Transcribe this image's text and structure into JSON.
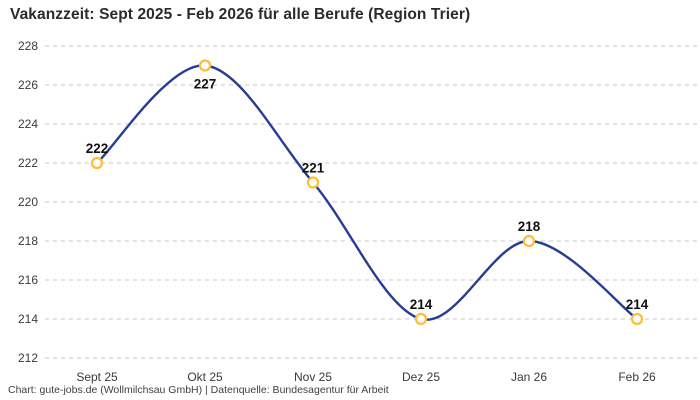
{
  "title": "Vakanzzeit: Sept 2025 - Feb 2026 für alle Berufe (Region Trier)",
  "footer": "Chart: gute-jobs.de (Wollmilchsau GmbH) | Datenquelle: Bundesagentur für Arbeit",
  "chart_data": {
    "type": "line",
    "title": "Vakanzzeit: Sept 2025 - Feb 2026 für alle Berufe (Region Trier)",
    "categories": [
      "Sept 25",
      "Okt 25",
      "Nov 25",
      "Dez 25",
      "Jan 26",
      "Feb 26"
    ],
    "values": [
      222,
      227,
      221,
      214,
      218,
      214
    ],
    "data_labels": [
      "222",
      "227",
      "221",
      "214",
      "218",
      "214"
    ],
    "label_position": [
      "above",
      "below",
      "above",
      "above",
      "above",
      "above"
    ],
    "ylim": [
      212,
      228
    ],
    "ytick_step": 2,
    "yticks": [
      212,
      214,
      216,
      218,
      220,
      222,
      224,
      226,
      228
    ],
    "grid": "horizontal-dashed",
    "smooth": true,
    "legend": "none",
    "colors": {
      "line": "#263D94",
      "marker_ring": "#FFBD33",
      "marker_fill": "#ffffff",
      "gridline": "#c9c9c9",
      "tick_text": "#3a3a3a",
      "label_text": "#111111",
      "title_text": "#2b2b2b",
      "footer_text": "#3f3f3f",
      "background": "#ffffff"
    }
  }
}
